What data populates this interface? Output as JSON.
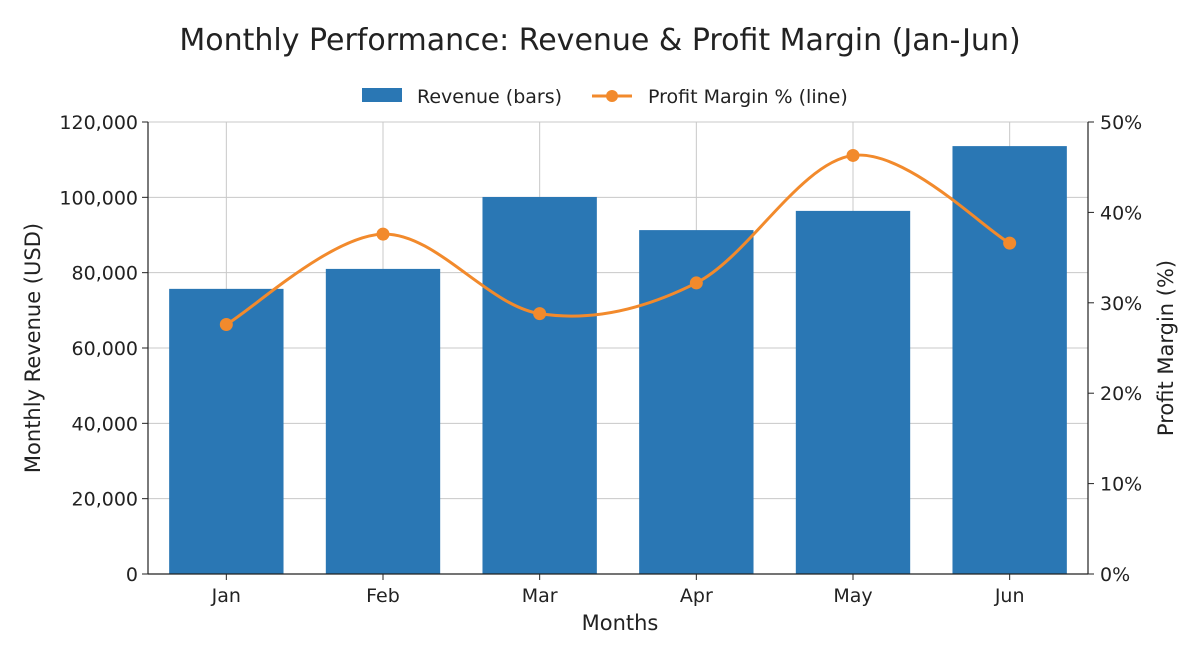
{
  "chart_data": {
    "type": "bar+line",
    "title": "Monthly Performance: Revenue & Profit Margin (Jan-Jun)",
    "xlabel": "Months",
    "ylabel": "Monthly Revenue (USD)",
    "y2label": "Profit Margin (%)",
    "categories": [
      "Jan",
      "Feb",
      "Mar",
      "Apr",
      "May",
      "Jun"
    ],
    "series": [
      {
        "name": "Revenue (bars)",
        "type": "bar",
        "axis": "left",
        "color": "#2a77b4",
        "values": [
          75700,
          81000,
          100100,
          91300,
          96400,
          113600
        ]
      },
      {
        "name": "Profit Margin % (line)",
        "type": "line",
        "axis": "right",
        "smooth": true,
        "color": "#f28a2c",
        "values": [
          27.6,
          37.6,
          28.8,
          32.2,
          46.3,
          36.6
        ]
      }
    ],
    "ylim": [
      0,
      120000
    ],
    "y2lim": [
      0,
      50
    ],
    "yticks": [
      "0",
      "20,000",
      "40,000",
      "60,000",
      "80,000",
      "100,000",
      "120,000"
    ],
    "y2ticks": [
      "0%",
      "10%",
      "20%",
      "30%",
      "40%",
      "50%"
    ],
    "grid": true,
    "legend": "top-center"
  }
}
